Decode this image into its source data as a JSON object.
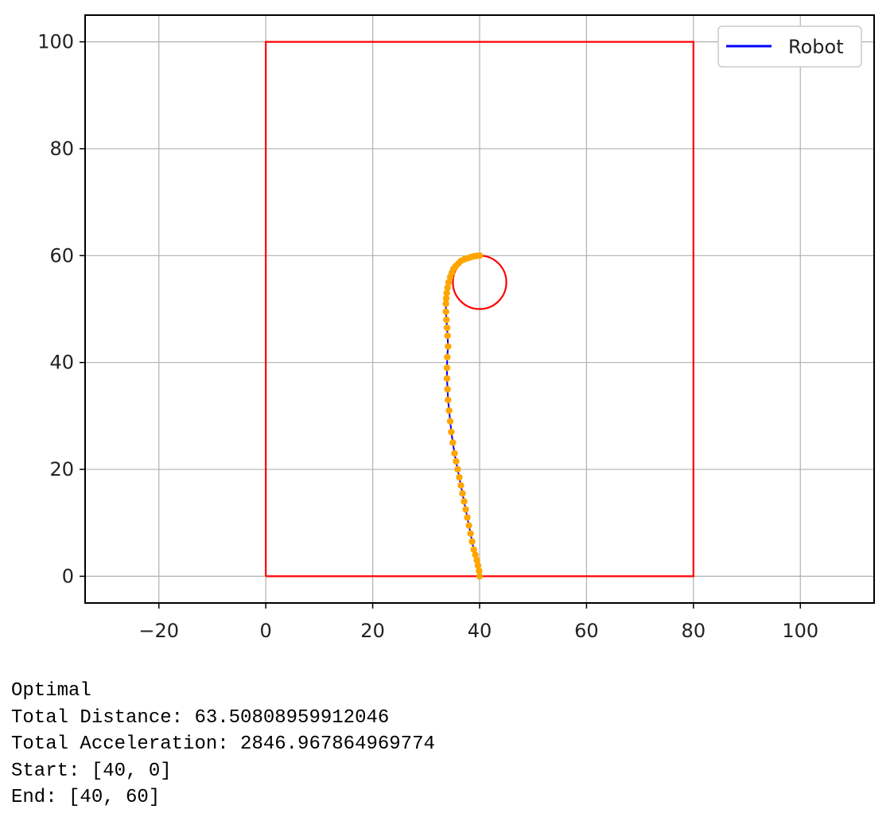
{
  "chart_data": {
    "type": "line",
    "xlim": [
      -33.8,
      113.8
    ],
    "ylim": [
      -5,
      105
    ],
    "xticks": [
      -20,
      0,
      20,
      40,
      60,
      80,
      100
    ],
    "xtick_labels": [
      "−20",
      "0",
      "20",
      "40",
      "60",
      "80",
      "100"
    ],
    "yticks": [
      0,
      20,
      40,
      60,
      80,
      100
    ],
    "ytick_labels": [
      "0",
      "20",
      "40",
      "60",
      "80",
      "100"
    ],
    "grid": true,
    "legend": {
      "placement": "top-right",
      "entries": [
        {
          "label": "Robot",
          "color": "#0000ff"
        }
      ]
    },
    "series": [
      {
        "name": "Robot",
        "line_color": "#0000ff",
        "marker_color": "#ffa500",
        "x": [
          40.0,
          39.9,
          39.7,
          39.5,
          39.2,
          38.9,
          38.6,
          38.3,
          38.0,
          37.7,
          37.4,
          37.1,
          36.8,
          36.5,
          36.2,
          35.9,
          35.6,
          35.3,
          35.0,
          34.7,
          34.5,
          34.3,
          34.1,
          34.0,
          33.9,
          33.9,
          33.95,
          34.1,
          34.0,
          33.9,
          33.8,
          33.7,
          33.7,
          33.75,
          33.85,
          34.0,
          34.2,
          34.5,
          34.8,
          35.1,
          35.5,
          36.0,
          36.5,
          37.1,
          37.7,
          38.3,
          38.9,
          39.4,
          40.0
        ],
        "y": [
          0.0,
          1.0,
          2.0,
          3.0,
          4.0,
          5.0,
          6.5,
          8.0,
          9.5,
          11.0,
          12.5,
          14.0,
          15.5,
          17.0,
          18.5,
          20.0,
          21.5,
          23.0,
          25.0,
          27.0,
          29.0,
          31.0,
          33.0,
          35.0,
          37.0,
          39.0,
          41.0,
          43.0,
          45.0,
          46.5,
          48.0,
          49.5,
          51.0,
          52.0,
          53.0,
          54.0,
          55.0,
          56.0,
          56.8,
          57.5,
          58.0,
          58.5,
          59.0,
          59.3,
          59.5,
          59.7,
          59.85,
          59.95,
          60.0
        ]
      }
    ],
    "boundary": {
      "color": "#ff0000",
      "x": [
        0,
        80,
        80,
        0,
        0
      ],
      "y": [
        0,
        0,
        100,
        100,
        0
      ]
    },
    "obstacle": {
      "color": "#ff0000",
      "cx": 40,
      "cy": 55,
      "r": 5
    }
  },
  "output_lines": [
    "Optimal",
    "Total Distance: 63.50808959912046",
    "Total Acceleration: 2846.967864969774",
    "Start: [40, 0]",
    "End: [40, 60]"
  ]
}
